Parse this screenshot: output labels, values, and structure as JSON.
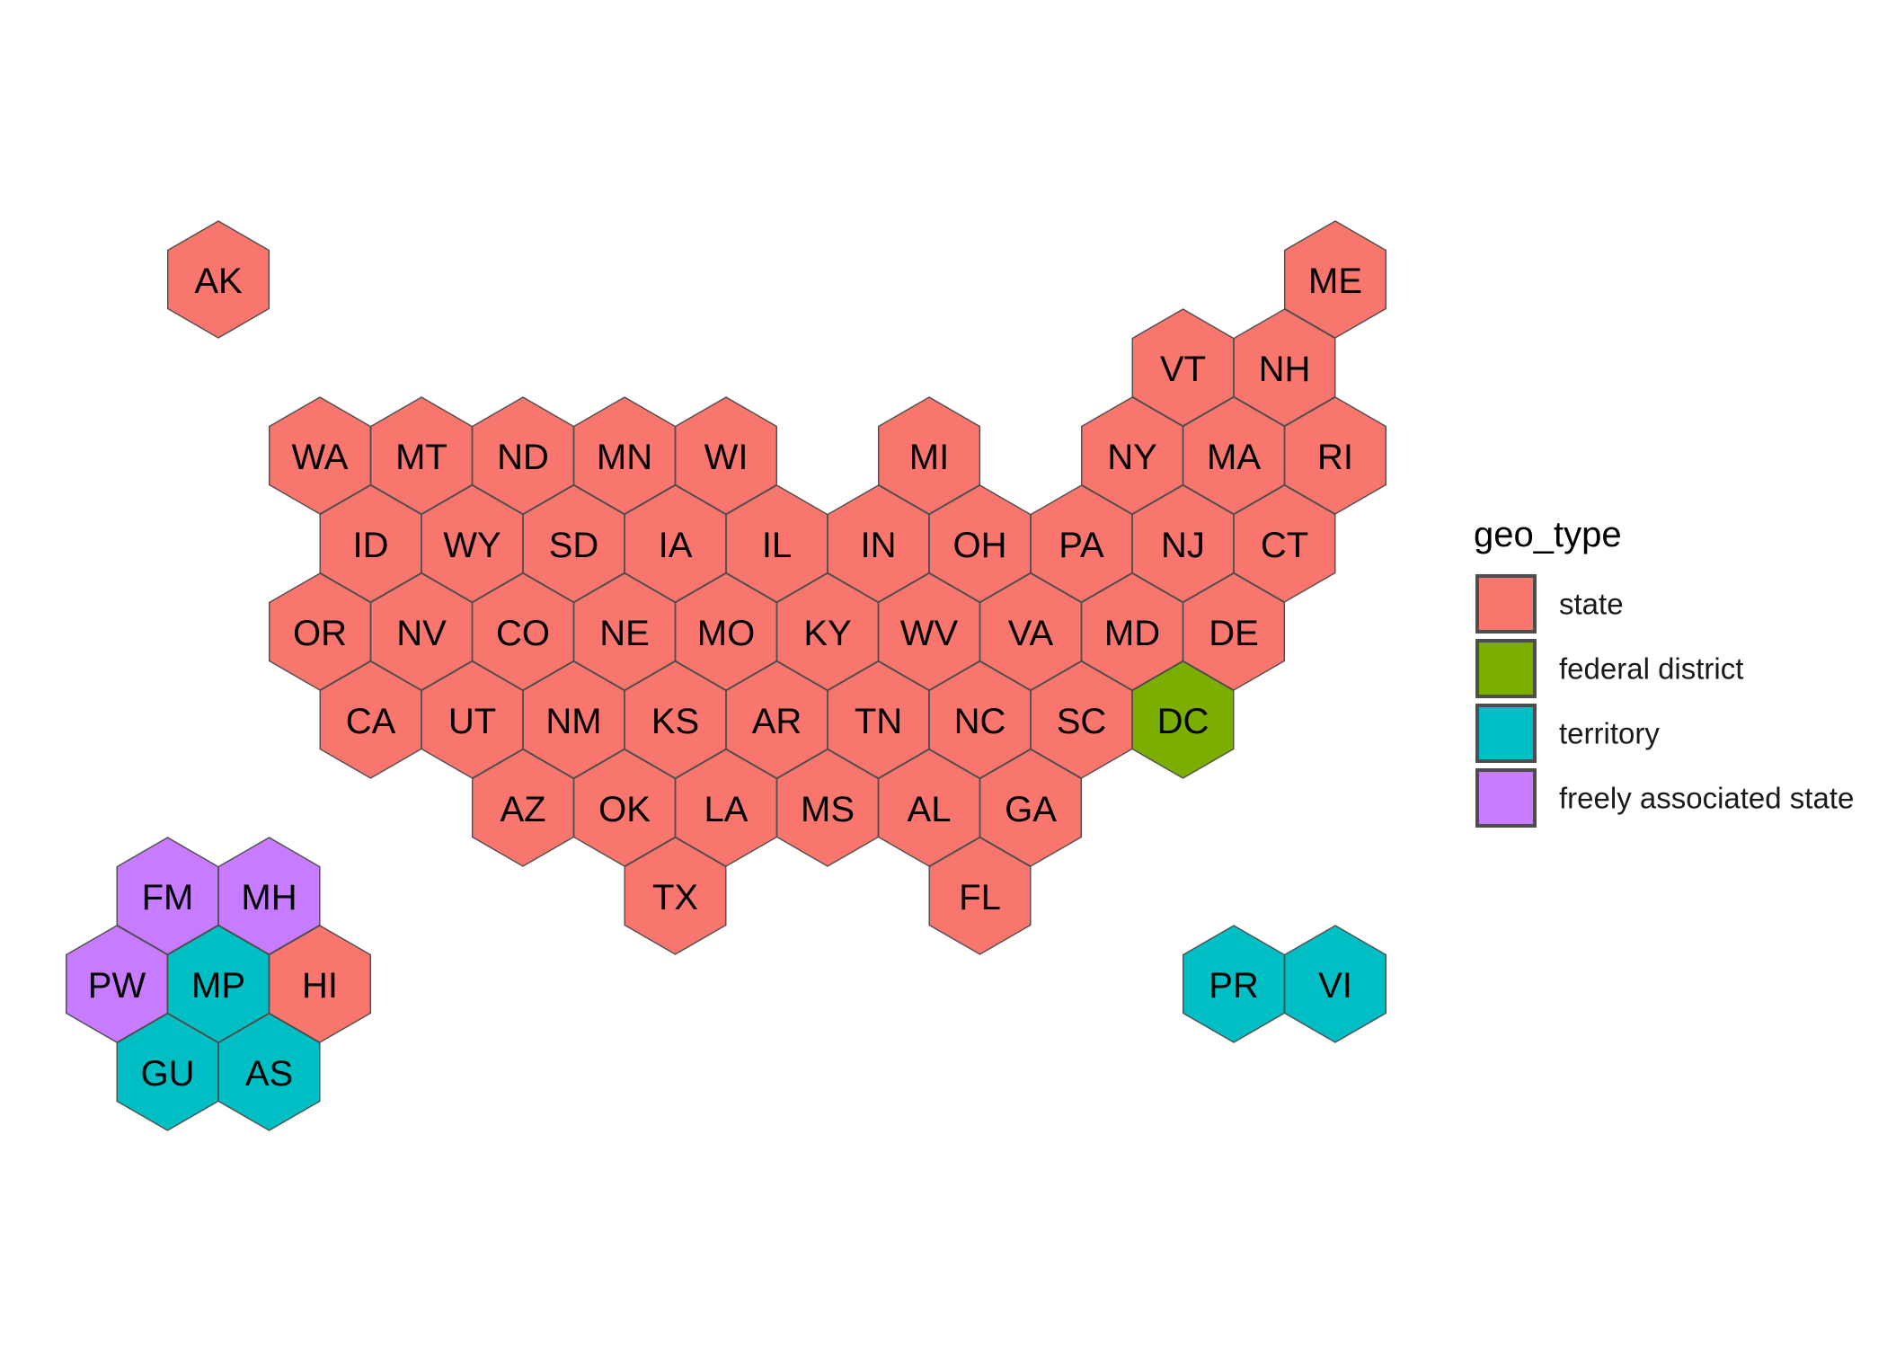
{
  "chart_data": {
    "type": "hex-tile-map",
    "legend": {
      "title": "geo_type",
      "placement": "right",
      "entries": [
        {
          "key": "state",
          "label": "state",
          "color": "#F8766D"
        },
        {
          "key": "federal_district",
          "label": "federal district",
          "color": "#7CAE00"
        },
        {
          "key": "territory",
          "label": "territory",
          "color": "#00BFC4"
        },
        {
          "key": "freely_associated_state",
          "label": "freely associated state",
          "color": "#C77CFF"
        }
      ]
    },
    "tiles": [
      {
        "abbr": "AK",
        "geo_type": "state",
        "col": 2,
        "row": 0
      },
      {
        "abbr": "ME",
        "geo_type": "state",
        "col": 24,
        "row": 0
      },
      {
        "abbr": "VT",
        "geo_type": "state",
        "col": 21,
        "row": 1
      },
      {
        "abbr": "NH",
        "geo_type": "state",
        "col": 23,
        "row": 1
      },
      {
        "abbr": "WA",
        "geo_type": "state",
        "col": 4,
        "row": 2
      },
      {
        "abbr": "MT",
        "geo_type": "state",
        "col": 6,
        "row": 2
      },
      {
        "abbr": "ND",
        "geo_type": "state",
        "col": 8,
        "row": 2
      },
      {
        "abbr": "MN",
        "geo_type": "state",
        "col": 10,
        "row": 2
      },
      {
        "abbr": "WI",
        "geo_type": "state",
        "col": 12,
        "row": 2
      },
      {
        "abbr": "MI",
        "geo_type": "state",
        "col": 16,
        "row": 2
      },
      {
        "abbr": "NY",
        "geo_type": "state",
        "col": 20,
        "row": 2
      },
      {
        "abbr": "MA",
        "geo_type": "state",
        "col": 22,
        "row": 2
      },
      {
        "abbr": "RI",
        "geo_type": "state",
        "col": 24,
        "row": 2
      },
      {
        "abbr": "ID",
        "geo_type": "state",
        "col": 5,
        "row": 3
      },
      {
        "abbr": "WY",
        "geo_type": "state",
        "col": 7,
        "row": 3
      },
      {
        "abbr": "SD",
        "geo_type": "state",
        "col": 9,
        "row": 3
      },
      {
        "abbr": "IA",
        "geo_type": "state",
        "col": 11,
        "row": 3
      },
      {
        "abbr": "IL",
        "geo_type": "state",
        "col": 13,
        "row": 3
      },
      {
        "abbr": "IN",
        "geo_type": "state",
        "col": 15,
        "row": 3
      },
      {
        "abbr": "OH",
        "geo_type": "state",
        "col": 17,
        "row": 3
      },
      {
        "abbr": "PA",
        "geo_type": "state",
        "col": 19,
        "row": 3
      },
      {
        "abbr": "NJ",
        "geo_type": "state",
        "col": 21,
        "row": 3
      },
      {
        "abbr": "CT",
        "geo_type": "state",
        "col": 23,
        "row": 3
      },
      {
        "abbr": "OR",
        "geo_type": "state",
        "col": 4,
        "row": 4
      },
      {
        "abbr": "NV",
        "geo_type": "state",
        "col": 6,
        "row": 4
      },
      {
        "abbr": "CO",
        "geo_type": "state",
        "col": 8,
        "row": 4
      },
      {
        "abbr": "NE",
        "geo_type": "state",
        "col": 10,
        "row": 4
      },
      {
        "abbr": "MO",
        "geo_type": "state",
        "col": 12,
        "row": 4
      },
      {
        "abbr": "KY",
        "geo_type": "state",
        "col": 14,
        "row": 4
      },
      {
        "abbr": "WV",
        "geo_type": "state",
        "col": 16,
        "row": 4
      },
      {
        "abbr": "VA",
        "geo_type": "state",
        "col": 18,
        "row": 4
      },
      {
        "abbr": "MD",
        "geo_type": "state",
        "col": 20,
        "row": 4
      },
      {
        "abbr": "DE",
        "geo_type": "state",
        "col": 22,
        "row": 4
      },
      {
        "abbr": "CA",
        "geo_type": "state",
        "col": 5,
        "row": 5
      },
      {
        "abbr": "UT",
        "geo_type": "state",
        "col": 7,
        "row": 5
      },
      {
        "abbr": "NM",
        "geo_type": "state",
        "col": 9,
        "row": 5
      },
      {
        "abbr": "KS",
        "geo_type": "state",
        "col": 11,
        "row": 5
      },
      {
        "abbr": "AR",
        "geo_type": "state",
        "col": 13,
        "row": 5
      },
      {
        "abbr": "TN",
        "geo_type": "state",
        "col": 15,
        "row": 5
      },
      {
        "abbr": "NC",
        "geo_type": "state",
        "col": 17,
        "row": 5
      },
      {
        "abbr": "SC",
        "geo_type": "state",
        "col": 19,
        "row": 5
      },
      {
        "abbr": "DC",
        "geo_type": "federal_district",
        "col": 21,
        "row": 5
      },
      {
        "abbr": "AZ",
        "geo_type": "state",
        "col": 8,
        "row": 6
      },
      {
        "abbr": "OK",
        "geo_type": "state",
        "col": 10,
        "row": 6
      },
      {
        "abbr": "LA",
        "geo_type": "state",
        "col": 12,
        "row": 6
      },
      {
        "abbr": "MS",
        "geo_type": "state",
        "col": 14,
        "row": 6
      },
      {
        "abbr": "AL",
        "geo_type": "state",
        "col": 16,
        "row": 6
      },
      {
        "abbr": "GA",
        "geo_type": "state",
        "col": 18,
        "row": 6
      },
      {
        "abbr": "FM",
        "geo_type": "freely_associated_state",
        "col": 1,
        "row": 7
      },
      {
        "abbr": "MH",
        "geo_type": "freely_associated_state",
        "col": 3,
        "row": 7
      },
      {
        "abbr": "TX",
        "geo_type": "state",
        "col": 11,
        "row": 7
      },
      {
        "abbr": "FL",
        "geo_type": "state",
        "col": 17,
        "row": 7
      },
      {
        "abbr": "PW",
        "geo_type": "freely_associated_state",
        "col": 0,
        "row": 8
      },
      {
        "abbr": "MP",
        "geo_type": "territory",
        "col": 2,
        "row": 8
      },
      {
        "abbr": "HI",
        "geo_type": "state",
        "col": 4,
        "row": 8
      },
      {
        "abbr": "PR",
        "geo_type": "territory",
        "col": 22,
        "row": 8
      },
      {
        "abbr": "VI",
        "geo_type": "territory",
        "col": 24,
        "row": 8
      },
      {
        "abbr": "GU",
        "geo_type": "territory",
        "col": 1,
        "row": 9
      },
      {
        "abbr": "AS",
        "geo_type": "territory",
        "col": 3,
        "row": 9
      }
    ]
  }
}
